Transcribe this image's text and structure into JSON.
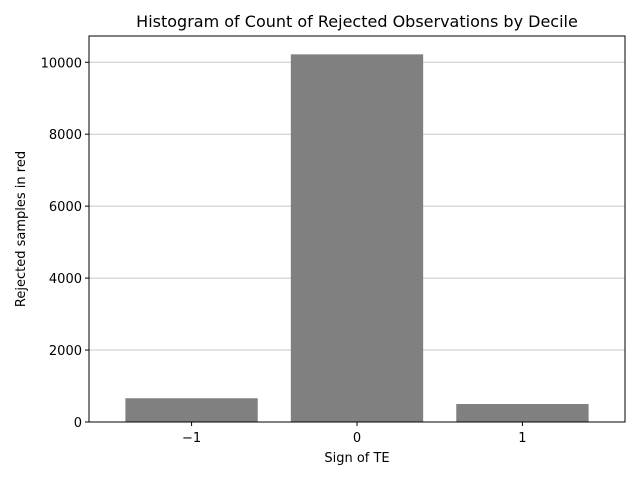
{
  "chart_data": {
    "type": "bar",
    "title": "Histogram of Count of Rejected Observations by Decile",
    "xlabel": "Sign of TE",
    "ylabel": "Rejected samples in red",
    "categories": [
      "−1",
      "0",
      "1"
    ],
    "values": [
      660,
      10220,
      500
    ],
    "ylim": [
      0,
      10730
    ],
    "yticks": [
      0,
      2000,
      4000,
      6000,
      8000,
      10000
    ],
    "ytick_labels": [
      "0",
      "2000",
      "4000",
      "6000",
      "8000",
      "10000"
    ],
    "bar_color": "#808080",
    "grid": "y",
    "grid_color": "#c8c8c8",
    "legend": "none"
  }
}
